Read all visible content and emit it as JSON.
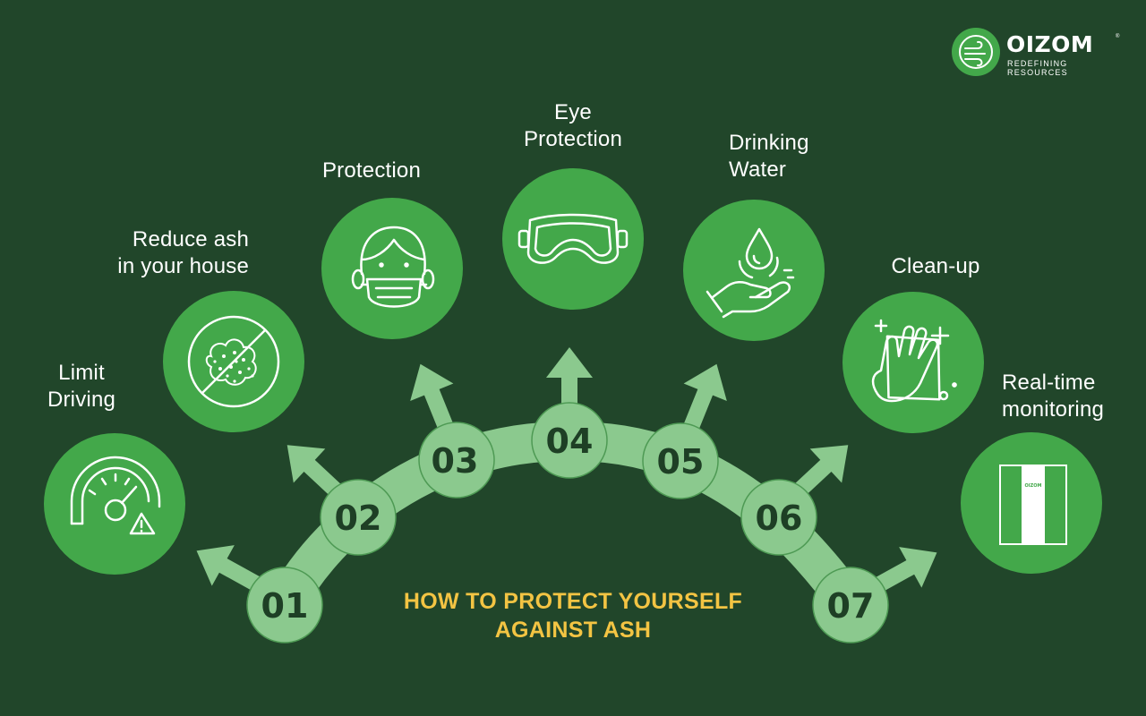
{
  "title": {
    "line1": "HOW TO PROTECT YOURSELF",
    "line2": "AGAINST ASH"
  },
  "logo": {
    "name": "OIZOM",
    "tagline": "REDEFINING RESOURCES",
    "registered": "®"
  },
  "steps": [
    {
      "number": "01",
      "label_lines": [
        "Limit",
        "Driving"
      ],
      "icon": "speedometer-warning-icon"
    },
    {
      "number": "02",
      "label_lines": [
        "Reduce ash",
        "in your house"
      ],
      "icon": "no-ash-icon"
    },
    {
      "number": "03",
      "label_lines": [
        "Protection"
      ],
      "icon": "face-mask-icon"
    },
    {
      "number": "04",
      "label_lines": [
        "Eye",
        "Protection"
      ],
      "icon": "goggles-icon"
    },
    {
      "number": "05",
      "label_lines": [
        "Drinking",
        "Water"
      ],
      "icon": "water-drop-hand-icon"
    },
    {
      "number": "06",
      "label_lines": [
        "Clean-up"
      ],
      "icon": "cleaning-hand-icon"
    },
    {
      "number": "07",
      "label_lines": [
        "Real-time",
        "monitoring"
      ],
      "icon": "air-monitor-device-icon"
    }
  ],
  "monitor_device_text": "OIZOM",
  "colors": {
    "background": "#21462a",
    "icon_circle": "#43a84a",
    "arc": "#8bc98e",
    "number_text": "#1e3f25",
    "title": "#f3c443",
    "label": "#ffffff"
  }
}
